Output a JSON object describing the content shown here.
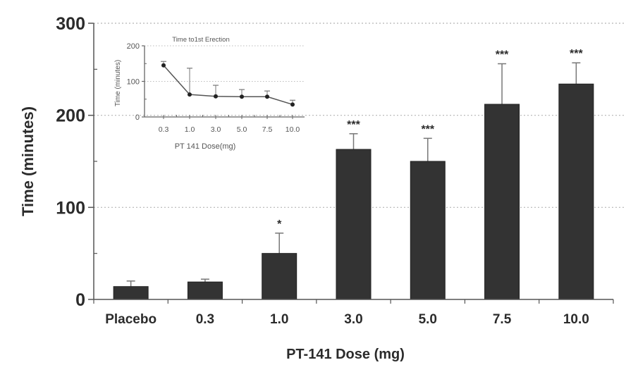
{
  "chart_data": [
    {
      "type": "bar",
      "title": "",
      "xlabel": "PT-141 Dose (mg)",
      "ylabel": "Time (minutes)",
      "ylim": [
        0,
        300
      ],
      "yticks": [
        0,
        100,
        200,
        300
      ],
      "grid": true,
      "categories": [
        "Placebo",
        "0.3",
        "1.0",
        "3.0",
        "5.0",
        "7.5",
        "10.0"
      ],
      "values": [
        14,
        19,
        50,
        163,
        150,
        212,
        234
      ],
      "error_upper": [
        20,
        22,
        72,
        180,
        175,
        256,
        257
      ],
      "significance": [
        "",
        "",
        "*",
        "***",
        "***",
        "***",
        "***"
      ],
      "bar_color": "#333333"
    },
    {
      "type": "line",
      "title": "Time to1st Erection",
      "xlabel": "PT 141  Dose(mg)",
      "ylabel": "Time (minutes)",
      "ylim": [
        0,
        200
      ],
      "yticks": [
        0,
        100,
        200
      ],
      "grid": true,
      "x": [
        "0.3",
        "1.0",
        "3.0",
        "5.0",
        "7.5",
        "10.0"
      ],
      "values": [
        145,
        63,
        58,
        57,
        57,
        35
      ],
      "error_upper": [
        156,
        137,
        89,
        77,
        73,
        47
      ],
      "placement": "inset top-left"
    }
  ]
}
